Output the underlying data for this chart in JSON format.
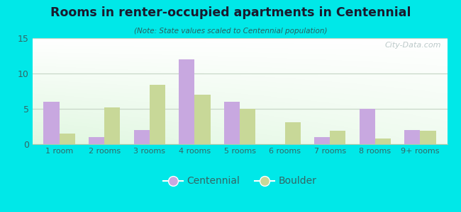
{
  "title": "Rooms in renter-occupied apartments in Centennial",
  "subtitle": "(Note: State values scaled to Centennial population)",
  "categories": [
    "1 room",
    "2 rooms",
    "3 rooms",
    "4 rooms",
    "5 rooms",
    "6 rooms",
    "7 rooms",
    "8 rooms",
    "9+ rooms"
  ],
  "centennial": [
    6,
    1,
    2,
    12,
    6,
    0,
    1,
    5,
    2
  ],
  "boulder": [
    1.5,
    5.2,
    8.4,
    7.0,
    5.0,
    3.1,
    1.9,
    0.8,
    1.9
  ],
  "centennial_color": "#c8a8e0",
  "boulder_color": "#c8d898",
  "background_outer": "#00e8e8",
  "ylim": [
    0,
    15
  ],
  "yticks": [
    0,
    5,
    10,
    15
  ],
  "bar_width": 0.35,
  "legend_labels": [
    "Centennial",
    "Boulder"
  ],
  "watermark": "City-Data.com",
  "title_color": "#1a1a2e",
  "subtitle_color": "#2a6060",
  "tick_color": "#336666",
  "grid_color": "#c8d8c8"
}
